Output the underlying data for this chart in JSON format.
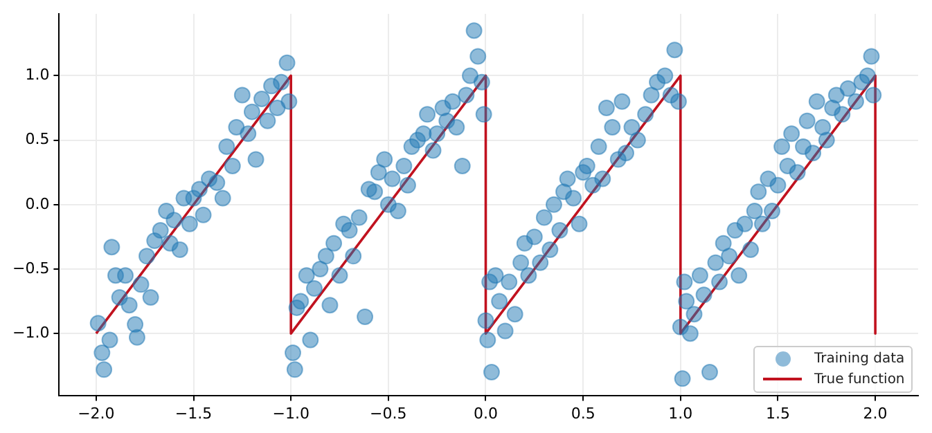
{
  "chart_data": {
    "type": "scatter",
    "xlim": [
      -2.19,
      2.22
    ],
    "ylim": [
      -1.48,
      1.48
    ],
    "xticks": [
      {
        "value": -2,
        "label": "−2.0"
      },
      {
        "value": -1.5,
        "label": "−1.5"
      },
      {
        "value": -1,
        "label": "−1.0"
      },
      {
        "value": -0.5,
        "label": "−0.5"
      },
      {
        "value": 0,
        "label": "0.0"
      },
      {
        "value": 0.5,
        "label": "0.5"
      },
      {
        "value": 1,
        "label": "1.0"
      },
      {
        "value": 1.5,
        "label": "1.5"
      },
      {
        "value": 2,
        "label": "2.0"
      }
    ],
    "yticks": [
      {
        "value": -1,
        "label": "−1.0"
      },
      {
        "value": -0.5,
        "label": "−0.5"
      },
      {
        "value": 0,
        "label": "0.0"
      },
      {
        "value": 0.5,
        "label": "0.5"
      },
      {
        "value": 1,
        "label": "1.0"
      }
    ],
    "grid": true,
    "legend": "bottom right",
    "marker": "circle",
    "series": [
      {
        "name": "Training data",
        "color": "#1f77b4",
        "x": [
          -1.99,
          -1.97,
          -1.96,
          -1.93,
          -1.92,
          -1.9,
          -1.88,
          -1.85,
          -1.83,
          -1.8,
          -1.79,
          -1.77,
          -1.74,
          -1.72,
          -1.7,
          -1.67,
          -1.64,
          -1.62,
          -1.6,
          -1.57,
          -1.55,
          -1.52,
          -1.5,
          -1.47,
          -1.45,
          -1.42,
          -1.38,
          -1.35,
          -1.33,
          -1.3,
          -1.28,
          -1.25,
          -1.22,
          -1.2,
          -1.18,
          -1.15,
          -1.12,
          -1.1,
          -1.07,
          -1.05,
          -1.02,
          -1.01,
          -0.99,
          -0.98,
          -0.97,
          -0.95,
          -0.92,
          -0.9,
          -0.88,
          -0.85,
          -0.82,
          -0.8,
          -0.78,
          -0.75,
          -0.73,
          -0.7,
          -0.68,
          -0.65,
          -0.62,
          -0.6,
          -0.57,
          -0.55,
          -0.52,
          -0.5,
          -0.48,
          -0.45,
          -0.42,
          -0.4,
          -0.38,
          -0.35,
          -0.32,
          -0.3,
          -0.27,
          -0.25,
          -0.22,
          -0.2,
          -0.17,
          -0.15,
          -0.12,
          -0.1,
          -0.08,
          -0.06,
          -0.04,
          -0.02,
          -0.01,
          0.0,
          0.01,
          0.02,
          0.03,
          0.05,
          0.07,
          0.1,
          0.12,
          0.15,
          0.18,
          0.2,
          0.22,
          0.25,
          0.28,
          0.3,
          0.33,
          0.35,
          0.38,
          0.4,
          0.42,
          0.45,
          0.48,
          0.5,
          0.52,
          0.55,
          0.58,
          0.6,
          0.62,
          0.65,
          0.68,
          0.7,
          0.72,
          0.75,
          0.78,
          0.82,
          0.85,
          0.88,
          0.92,
          0.95,
          0.97,
          0.99,
          1.0,
          1.01,
          1.02,
          1.03,
          1.05,
          1.07,
          1.1,
          1.12,
          1.15,
          1.18,
          1.2,
          1.22,
          1.25,
          1.28,
          1.3,
          1.33,
          1.36,
          1.38,
          1.4,
          1.42,
          1.45,
          1.47,
          1.5,
          1.52,
          1.55,
          1.57,
          1.6,
          1.63,
          1.65,
          1.68,
          1.7,
          1.73,
          1.75,
          1.78,
          1.8,
          1.83,
          1.86,
          1.9,
          1.93,
          1.96,
          1.98,
          1.99
        ],
        "values": [
          -0.92,
          -1.15,
          -1.28,
          -1.05,
          -0.33,
          -0.55,
          -0.72,
          -0.55,
          -0.78,
          -0.93,
          -1.03,
          -0.62,
          -0.4,
          -0.72,
          -0.28,
          -0.2,
          -0.05,
          -0.3,
          -0.12,
          -0.35,
          0.05,
          -0.15,
          0.05,
          0.12,
          -0.08,
          0.2,
          0.17,
          0.05,
          0.45,
          0.3,
          0.6,
          0.85,
          0.55,
          0.72,
          0.35,
          0.82,
          0.65,
          0.92,
          0.75,
          0.95,
          1.1,
          0.8,
          -1.15,
          -1.28,
          -0.8,
          -0.75,
          -0.55,
          -1.05,
          -0.65,
          -0.5,
          -0.4,
          -0.78,
          -0.3,
          -0.55,
          -0.15,
          -0.2,
          -0.4,
          -0.1,
          -0.87,
          0.12,
          0.1,
          0.25,
          0.35,
          0.0,
          0.2,
          -0.05,
          0.3,
          0.15,
          0.45,
          0.5,
          0.55,
          0.7,
          0.42,
          0.55,
          0.75,
          0.65,
          0.8,
          0.6,
          0.3,
          0.85,
          1.0,
          1.35,
          1.15,
          0.95,
          0.7,
          -0.9,
          -1.05,
          -0.6,
          -1.3,
          -0.55,
          -0.75,
          -0.98,
          -0.6,
          -0.85,
          -0.45,
          -0.3,
          -0.55,
          -0.25,
          -0.45,
          -0.1,
          -0.35,
          0.0,
          -0.2,
          0.1,
          0.2,
          0.05,
          -0.15,
          0.25,
          0.3,
          0.15,
          0.45,
          0.2,
          0.75,
          0.6,
          0.35,
          0.8,
          0.4,
          0.6,
          0.5,
          0.7,
          0.85,
          0.95,
          1.0,
          0.85,
          1.2,
          0.8,
          -0.95,
          -1.35,
          -0.6,
          -0.75,
          -1.0,
          -0.85,
          -0.55,
          -0.7,
          -1.3,
          -0.45,
          -0.6,
          -0.3,
          -0.4,
          -0.2,
          -0.55,
          -0.15,
          -0.35,
          -0.05,
          0.1,
          -0.15,
          0.2,
          -0.05,
          0.15,
          0.45,
          0.3,
          0.55,
          0.25,
          0.45,
          0.65,
          0.4,
          0.8,
          0.6,
          0.5,
          0.75,
          0.85,
          0.7,
          0.9,
          0.8,
          0.95,
          1.0,
          1.15,
          0.85
        ]
      },
      {
        "name": "True function",
        "type": "line",
        "color": "#c1121f",
        "marker": "none",
        "line_style": "solid",
        "x": [
          -2,
          -1,
          -1,
          0,
          0,
          1,
          1,
          2,
          2
        ],
        "values": [
          -1,
          1,
          -1,
          1,
          -1,
          1,
          -1,
          1,
          -1
        ]
      }
    ]
  }
}
